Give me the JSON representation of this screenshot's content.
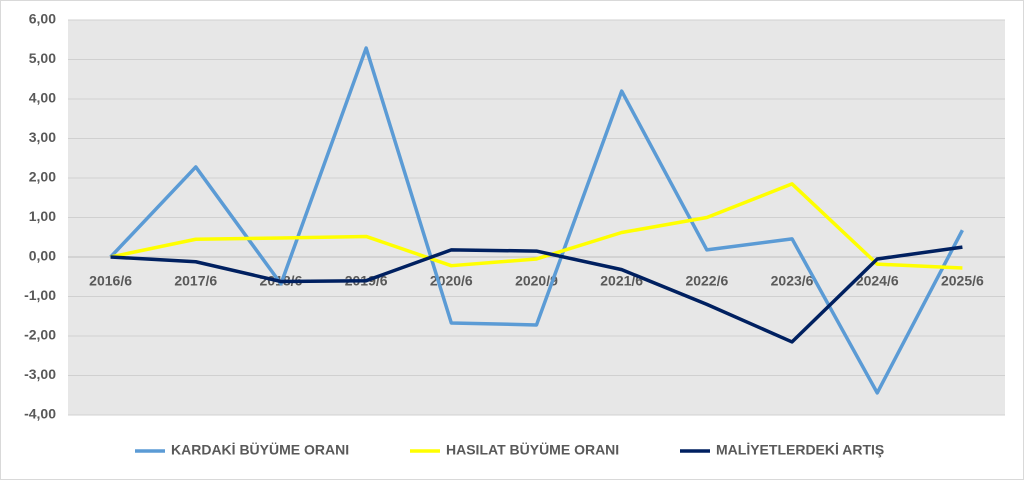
{
  "chart_data": {
    "type": "line",
    "categories": [
      "2016/6",
      "2017/6",
      "2018/6",
      "2019/6",
      "2020/6",
      "2020/9",
      "2021/6",
      "2022/6",
      "2023/6",
      "2024/6",
      "2025/6"
    ],
    "series": [
      {
        "name": "KARDAKİ BÜYÜME ORANI",
        "color": "#5b9bd5",
        "values": [
          0,
          2.28,
          -0.68,
          5.29,
          -1.67,
          -1.72,
          4.2,
          0.18,
          0.46,
          -3.44,
          0.68
        ]
      },
      {
        "name": "HASILAT BÜYÜME ORANI",
        "color": "#ffff00",
        "values": [
          0,
          0.45,
          0.48,
          0.52,
          -0.22,
          -0.05,
          0.62,
          1.0,
          1.85,
          -0.18,
          -0.28
        ]
      },
      {
        "name": "MALİYETLERDEKİ ARTIŞ",
        "color": "#002060",
        "values": [
          0,
          -0.12,
          -0.62,
          -0.6,
          0.18,
          0.15,
          -0.32,
          -1.2,
          -2.15,
          -0.05,
          0.25
        ]
      }
    ],
    "ylim": [
      -4,
      6
    ],
    "yticks": [
      {
        "value": -4,
        "label": "-4,00"
      },
      {
        "value": -3,
        "label": "-3,00"
      },
      {
        "value": -2,
        "label": "-2,00"
      },
      {
        "value": -1,
        "label": "-1,00"
      },
      {
        "value": 0,
        "label": "0,00"
      },
      {
        "value": 1,
        "label": "1,00"
      },
      {
        "value": 2,
        "label": "2,00"
      },
      {
        "value": 3,
        "label": "3,00"
      },
      {
        "value": 4,
        "label": "4,00"
      },
      {
        "value": 5,
        "label": "5,00"
      },
      {
        "value": 6,
        "label": "6,00"
      }
    ],
    "grid": true,
    "legend": "bottom"
  }
}
